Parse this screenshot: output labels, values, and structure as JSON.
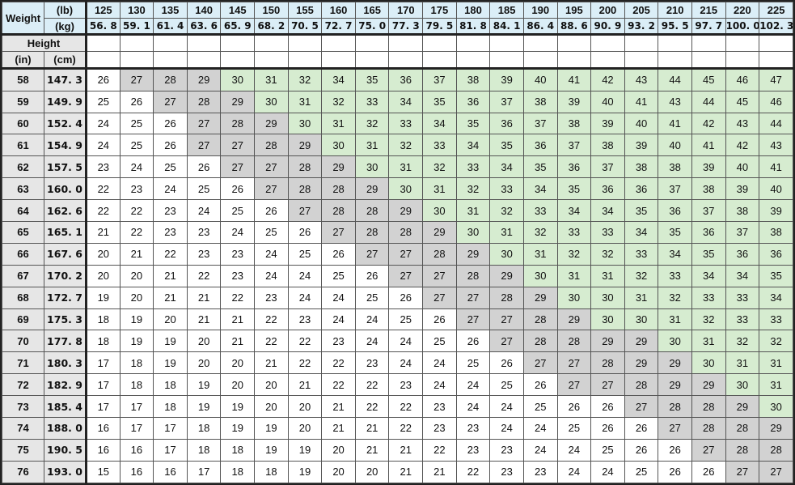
{
  "header": {
    "weight_label": "Weight",
    "lb_unit": "(lb)",
    "kg_unit": "(kg)",
    "height_label": "Height",
    "in_unit": "(in)",
    "cm_unit": "(cm)"
  },
  "weights_lb": [
    "125",
    "130",
    "135",
    "140",
    "145",
    "150",
    "155",
    "160",
    "165",
    "170",
    "175",
    "180",
    "185",
    "190",
    "195",
    "200",
    "205",
    "210",
    "215",
    "220",
    "225"
  ],
  "weights_kg": [
    "56. 8",
    "59. 1",
    "61. 4",
    "63. 6",
    "65. 9",
    "68. 2",
    "70. 5",
    "72. 7",
    "75. 0",
    "77. 3",
    "79. 5",
    "81. 8",
    "84. 1",
    "86. 4",
    "88. 6",
    "90. 9",
    "93. 2",
    "95. 5",
    "97. 7",
    "100. 0",
    "102. 3"
  ],
  "rows": [
    {
      "in": "58",
      "cm": "147. 3",
      "values": [
        26,
        27,
        28,
        29,
        30,
        31,
        32,
        34,
        35,
        36,
        37,
        38,
        39,
        40,
        41,
        42,
        43,
        44,
        45,
        46,
        47
      ],
      "shade": [
        "w",
        "g",
        "g",
        "g",
        "G",
        "G",
        "G",
        "G",
        "G",
        "G",
        "G",
        "G",
        "G",
        "G",
        "G",
        "G",
        "G",
        "G",
        "G",
        "G",
        "G"
      ]
    },
    {
      "in": "59",
      "cm": "149. 9",
      "values": [
        25,
        26,
        27,
        28,
        29,
        30,
        31,
        32,
        33,
        34,
        35,
        36,
        37,
        38,
        39,
        40,
        41,
        43,
        44,
        45,
        46
      ],
      "shade": [
        "w",
        "w",
        "g",
        "g",
        "g",
        "G",
        "G",
        "G",
        "G",
        "G",
        "G",
        "G",
        "G",
        "G",
        "G",
        "G",
        "G",
        "G",
        "G",
        "G",
        "G"
      ]
    },
    {
      "in": "60",
      "cm": "152. 4",
      "values": [
        24,
        25,
        26,
        27,
        28,
        29,
        30,
        31,
        32,
        33,
        34,
        35,
        36,
        37,
        38,
        39,
        40,
        41,
        42,
        43,
        44
      ],
      "shade": [
        "w",
        "w",
        "w",
        "g",
        "g",
        "g",
        "G",
        "G",
        "G",
        "G",
        "G",
        "G",
        "G",
        "G",
        "G",
        "G",
        "G",
        "G",
        "G",
        "G",
        "G"
      ]
    },
    {
      "in": "61",
      "cm": "154. 9",
      "values": [
        24,
        25,
        26,
        27,
        27,
        28,
        29,
        30,
        31,
        32,
        33,
        34,
        35,
        36,
        37,
        38,
        39,
        40,
        41,
        42,
        43
      ],
      "shade": [
        "w",
        "w",
        "w",
        "g",
        "g",
        "g",
        "g",
        "G",
        "G",
        "G",
        "G",
        "G",
        "G",
        "G",
        "G",
        "G",
        "G",
        "G",
        "G",
        "G",
        "G"
      ]
    },
    {
      "in": "62",
      "cm": "157. 5",
      "values": [
        23,
        24,
        25,
        26,
        27,
        27,
        28,
        29,
        30,
        31,
        32,
        33,
        34,
        35,
        36,
        37,
        38,
        38,
        39,
        40,
        41
      ],
      "shade": [
        "w",
        "w",
        "w",
        "w",
        "g",
        "g",
        "g",
        "g",
        "G",
        "G",
        "G",
        "G",
        "G",
        "G",
        "G",
        "G",
        "G",
        "G",
        "G",
        "G",
        "G"
      ]
    },
    {
      "in": "63",
      "cm": "160. 0",
      "values": [
        22,
        23,
        24,
        25,
        26,
        27,
        28,
        28,
        29,
        30,
        31,
        32,
        33,
        34,
        35,
        36,
        36,
        37,
        38,
        39,
        40
      ],
      "shade": [
        "w",
        "w",
        "w",
        "w",
        "w",
        "g",
        "g",
        "g",
        "g",
        "G",
        "G",
        "G",
        "G",
        "G",
        "G",
        "G",
        "G",
        "G",
        "G",
        "G",
        "G"
      ]
    },
    {
      "in": "64",
      "cm": "162. 6",
      "values": [
        22,
        22,
        23,
        24,
        25,
        26,
        27,
        28,
        28,
        29,
        30,
        31,
        32,
        33,
        34,
        34,
        35,
        36,
        37,
        38,
        39
      ],
      "shade": [
        "w",
        "w",
        "w",
        "w",
        "w",
        "w",
        "g",
        "g",
        "g",
        "g",
        "G",
        "G",
        "G",
        "G",
        "G",
        "G",
        "G",
        "G",
        "G",
        "G",
        "G"
      ]
    },
    {
      "in": "65",
      "cm": "165. 1",
      "values": [
        21,
        22,
        23,
        23,
        24,
        25,
        26,
        27,
        28,
        28,
        29,
        30,
        31,
        32,
        33,
        33,
        34,
        35,
        36,
        37,
        38
      ],
      "shade": [
        "w",
        "w",
        "w",
        "w",
        "w",
        "w",
        "w",
        "g",
        "g",
        "g",
        "g",
        "G",
        "G",
        "G",
        "G",
        "G",
        "G",
        "G",
        "G",
        "G",
        "G"
      ]
    },
    {
      "in": "66",
      "cm": "167. 6",
      "values": [
        20,
        21,
        22,
        23,
        23,
        24,
        25,
        26,
        27,
        27,
        28,
        29,
        30,
        31,
        32,
        32,
        33,
        34,
        35,
        36,
        36
      ],
      "shade": [
        "w",
        "w",
        "w",
        "w",
        "w",
        "w",
        "w",
        "w",
        "g",
        "g",
        "g",
        "g",
        "G",
        "G",
        "G",
        "G",
        "G",
        "G",
        "G",
        "G",
        "G"
      ]
    },
    {
      "in": "67",
      "cm": "170. 2",
      "values": [
        20,
        20,
        21,
        22,
        23,
        24,
        24,
        25,
        26,
        27,
        27,
        28,
        29,
        30,
        31,
        31,
        32,
        33,
        34,
        34,
        35
      ],
      "shade": [
        "w",
        "w",
        "w",
        "w",
        "w",
        "w",
        "w",
        "w",
        "w",
        "g",
        "g",
        "g",
        "g",
        "G",
        "G",
        "G",
        "G",
        "G",
        "G",
        "G",
        "G"
      ]
    },
    {
      "in": "68",
      "cm": "172. 7",
      "values": [
        19,
        20,
        21,
        21,
        22,
        23,
        24,
        24,
        25,
        26,
        27,
        27,
        28,
        29,
        30,
        30,
        31,
        32,
        33,
        33,
        34
      ],
      "shade": [
        "w",
        "w",
        "w",
        "w",
        "w",
        "w",
        "w",
        "w",
        "w",
        "w",
        "g",
        "g",
        "g",
        "g",
        "G",
        "G",
        "G",
        "G",
        "G",
        "G",
        "G"
      ]
    },
    {
      "in": "69",
      "cm": "175. 3",
      "values": [
        18,
        19,
        20,
        21,
        21,
        22,
        23,
        24,
        24,
        25,
        26,
        27,
        27,
        28,
        29,
        30,
        30,
        31,
        32,
        33,
        33
      ],
      "shade": [
        "w",
        "w",
        "w",
        "w",
        "w",
        "w",
        "w",
        "w",
        "w",
        "w",
        "w",
        "g",
        "g",
        "g",
        "g",
        "G",
        "G",
        "G",
        "G",
        "G",
        "G"
      ]
    },
    {
      "in": "70",
      "cm": "177. 8",
      "values": [
        18,
        19,
        19,
        20,
        21,
        22,
        22,
        23,
        24,
        24,
        25,
        26,
        27,
        28,
        28,
        29,
        29,
        30,
        31,
        32,
        32
      ],
      "shade": [
        "w",
        "w",
        "w",
        "w",
        "w",
        "w",
        "w",
        "w",
        "w",
        "w",
        "w",
        "w",
        "g",
        "g",
        "g",
        "g",
        "g",
        "G",
        "G",
        "G",
        "G"
      ]
    },
    {
      "in": "71",
      "cm": "180. 3",
      "values": [
        17,
        18,
        19,
        20,
        20,
        21,
        22,
        22,
        23,
        24,
        24,
        25,
        26,
        27,
        27,
        28,
        29,
        29,
        30,
        31,
        31
      ],
      "shade": [
        "w",
        "w",
        "w",
        "w",
        "w",
        "w",
        "w",
        "w",
        "w",
        "w",
        "w",
        "w",
        "w",
        "g",
        "g",
        "g",
        "g",
        "g",
        "G",
        "G",
        "G"
      ]
    },
    {
      "in": "72",
      "cm": "182. 9",
      "values": [
        17,
        18,
        18,
        19,
        20,
        20,
        21,
        22,
        22,
        23,
        24,
        24,
        25,
        26,
        27,
        27,
        28,
        29,
        29,
        30,
        31
      ],
      "shade": [
        "w",
        "w",
        "w",
        "w",
        "w",
        "w",
        "w",
        "w",
        "w",
        "w",
        "w",
        "w",
        "w",
        "w",
        "g",
        "g",
        "g",
        "g",
        "g",
        "G",
        "G"
      ]
    },
    {
      "in": "73",
      "cm": "185. 4",
      "values": [
        17,
        17,
        18,
        19,
        19,
        20,
        20,
        21,
        22,
        22,
        23,
        24,
        24,
        25,
        26,
        26,
        27,
        28,
        28,
        29,
        30
      ],
      "shade": [
        "w",
        "w",
        "w",
        "w",
        "w",
        "w",
        "w",
        "w",
        "w",
        "w",
        "w",
        "w",
        "w",
        "w",
        "w",
        "w",
        "g",
        "g",
        "g",
        "g",
        "G"
      ]
    },
    {
      "in": "74",
      "cm": "188. 0",
      "values": [
        16,
        17,
        17,
        18,
        19,
        19,
        20,
        21,
        21,
        22,
        23,
        23,
        24,
        24,
        25,
        26,
        26,
        27,
        28,
        28,
        29
      ],
      "shade": [
        "w",
        "w",
        "w",
        "w",
        "w",
        "w",
        "w",
        "w",
        "w",
        "w",
        "w",
        "w",
        "w",
        "w",
        "w",
        "w",
        "w",
        "g",
        "g",
        "g",
        "g"
      ]
    },
    {
      "in": "75",
      "cm": "190. 5",
      "values": [
        16,
        16,
        17,
        18,
        18,
        19,
        19,
        20,
        21,
        21,
        22,
        23,
        23,
        24,
        24,
        25,
        26,
        26,
        27,
        28,
        28
      ],
      "shade": [
        "w",
        "w",
        "w",
        "w",
        "w",
        "w",
        "w",
        "w",
        "w",
        "w",
        "w",
        "w",
        "w",
        "w",
        "w",
        "w",
        "w",
        "w",
        "g",
        "g",
        "g"
      ]
    },
    {
      "in": "76",
      "cm": "193. 0",
      "values": [
        15,
        16,
        16,
        17,
        18,
        18,
        19,
        20,
        20,
        21,
        21,
        22,
        23,
        23,
        24,
        24,
        25,
        26,
        26,
        27,
        27
      ],
      "shade": [
        "w",
        "w",
        "w",
        "w",
        "w",
        "w",
        "w",
        "w",
        "w",
        "w",
        "w",
        "w",
        "w",
        "w",
        "w",
        "w",
        "w",
        "w",
        "w",
        "g",
        "g"
      ]
    }
  ],
  "colors": {
    "white": "#ffffff",
    "gray": "#d2d2d2",
    "green": "#d6ecd0",
    "header_blue": "#dbeef7",
    "header_gray": "#e6e6e6"
  }
}
